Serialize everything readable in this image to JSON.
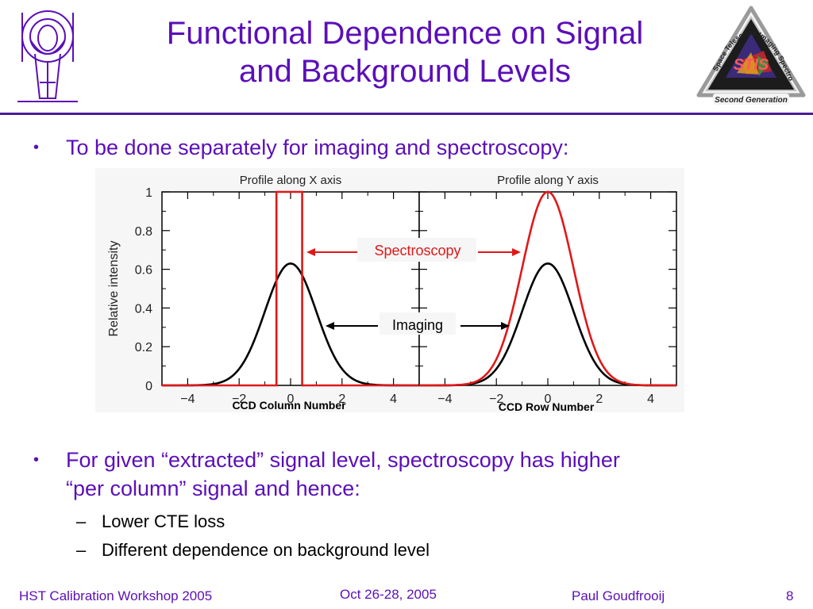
{
  "slide": {
    "title_line1": "Functional Dependence on Signal",
    "title_line2": "and Background Levels",
    "bullet1": "To be done separately for imaging and spectroscopy:",
    "bullet2_line1": "For given “extracted” signal level, spectroscopy has higher",
    "bullet2_line2": "“per column” signal and hence:",
    "sub_bullets": [
      "Lower CTE loss",
      "Different dependence on background level"
    ],
    "bullet_marker": "•",
    "sub_marker": "–"
  },
  "logo": {
    "badge_top_text": "Space Telescope Imaging Spectrograph",
    "badge_center_text": "STIS",
    "badge_bottom_text": "Second Generation"
  },
  "footer": {
    "left": "HST Calibration Workshop 2005",
    "center": "Oct 26-28, 2005",
    "author": "Paul Goudfrooij",
    "page": "8"
  },
  "colors": {
    "title": "#5b0fb8",
    "imaging": "#000000",
    "spectroscopy": "#e01818"
  },
  "chart_data": {
    "type": "line",
    "ylabel": "Relative intensity",
    "ylim": [
      0,
      1
    ],
    "yticks": [
      0,
      0.2,
      0.4,
      0.6,
      0.8,
      1
    ],
    "grid": false,
    "annotations": {
      "spectroscopy": "Spectroscopy",
      "imaging": "Imaging"
    },
    "panels": [
      {
        "title": "Profile along X axis",
        "xlabel": "CCD Column Number",
        "xlim": [
          -5,
          5
        ],
        "xticks": [
          -4,
          -2,
          0,
          2,
          4
        ],
        "series": [
          {
            "kind": "imaging",
            "shape": "gaussian",
            "amplitude": 0.63,
            "center": 0,
            "sigma": 1.0
          },
          {
            "kind": "spectroscopy",
            "shape": "boxcar",
            "height": 1.0,
            "x_min": -0.55,
            "x_max": 0.45
          }
        ]
      },
      {
        "title": "Profile along Y axis",
        "xlabel": "CCD Row Number",
        "xlim": [
          -5,
          5
        ],
        "xticks": [
          -4,
          -2,
          0,
          2,
          4
        ],
        "series": [
          {
            "kind": "imaging",
            "shape": "gaussian",
            "amplitude": 0.63,
            "center": 0,
            "sigma": 1.0
          },
          {
            "kind": "spectroscopy",
            "shape": "gaussian",
            "amplitude": 1.0,
            "center": 0,
            "sigma": 1.0
          }
        ]
      }
    ]
  }
}
